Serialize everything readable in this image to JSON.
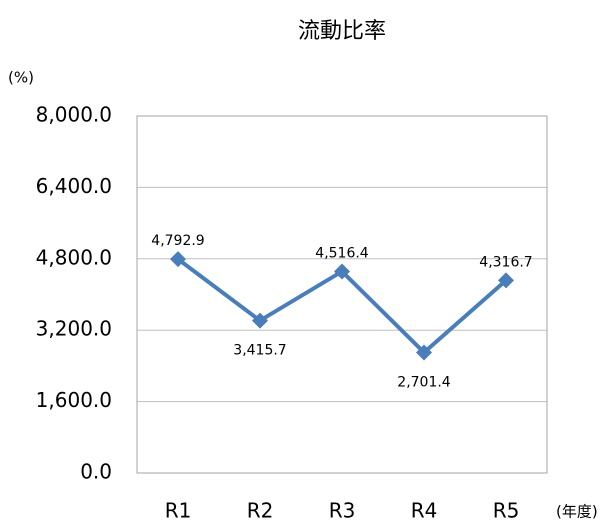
{
  "chart_data": {
    "type": "line",
    "title": "流動比率",
    "y_axis_label": "(%)",
    "x_axis_label": "(年度)",
    "categories": [
      "R1",
      "R2",
      "R3",
      "R4",
      "R5"
    ],
    "series": [
      {
        "name": "流動比率",
        "color": "#4a7ebb",
        "values": [
          4792.9,
          3415.7,
          4516.4,
          2701.4,
          4316.7
        ],
        "value_labels": [
          "4,792.9",
          "3,415.7",
          "4,516.4",
          "2,701.4",
          "4,316.7"
        ]
      }
    ],
    "ylim": [
      0,
      8000
    ],
    "yticks": [
      {
        "value": 0,
        "label": "0.0"
      },
      {
        "value": 1600,
        "label": "1,600.0"
      },
      {
        "value": 3200,
        "label": "3,200.0"
      },
      {
        "value": 4800,
        "label": "4,800.0"
      },
      {
        "value": 6400,
        "label": "6,400.0"
      },
      {
        "value": 8000,
        "label": "8,000.0"
      }
    ],
    "grid": true
  }
}
